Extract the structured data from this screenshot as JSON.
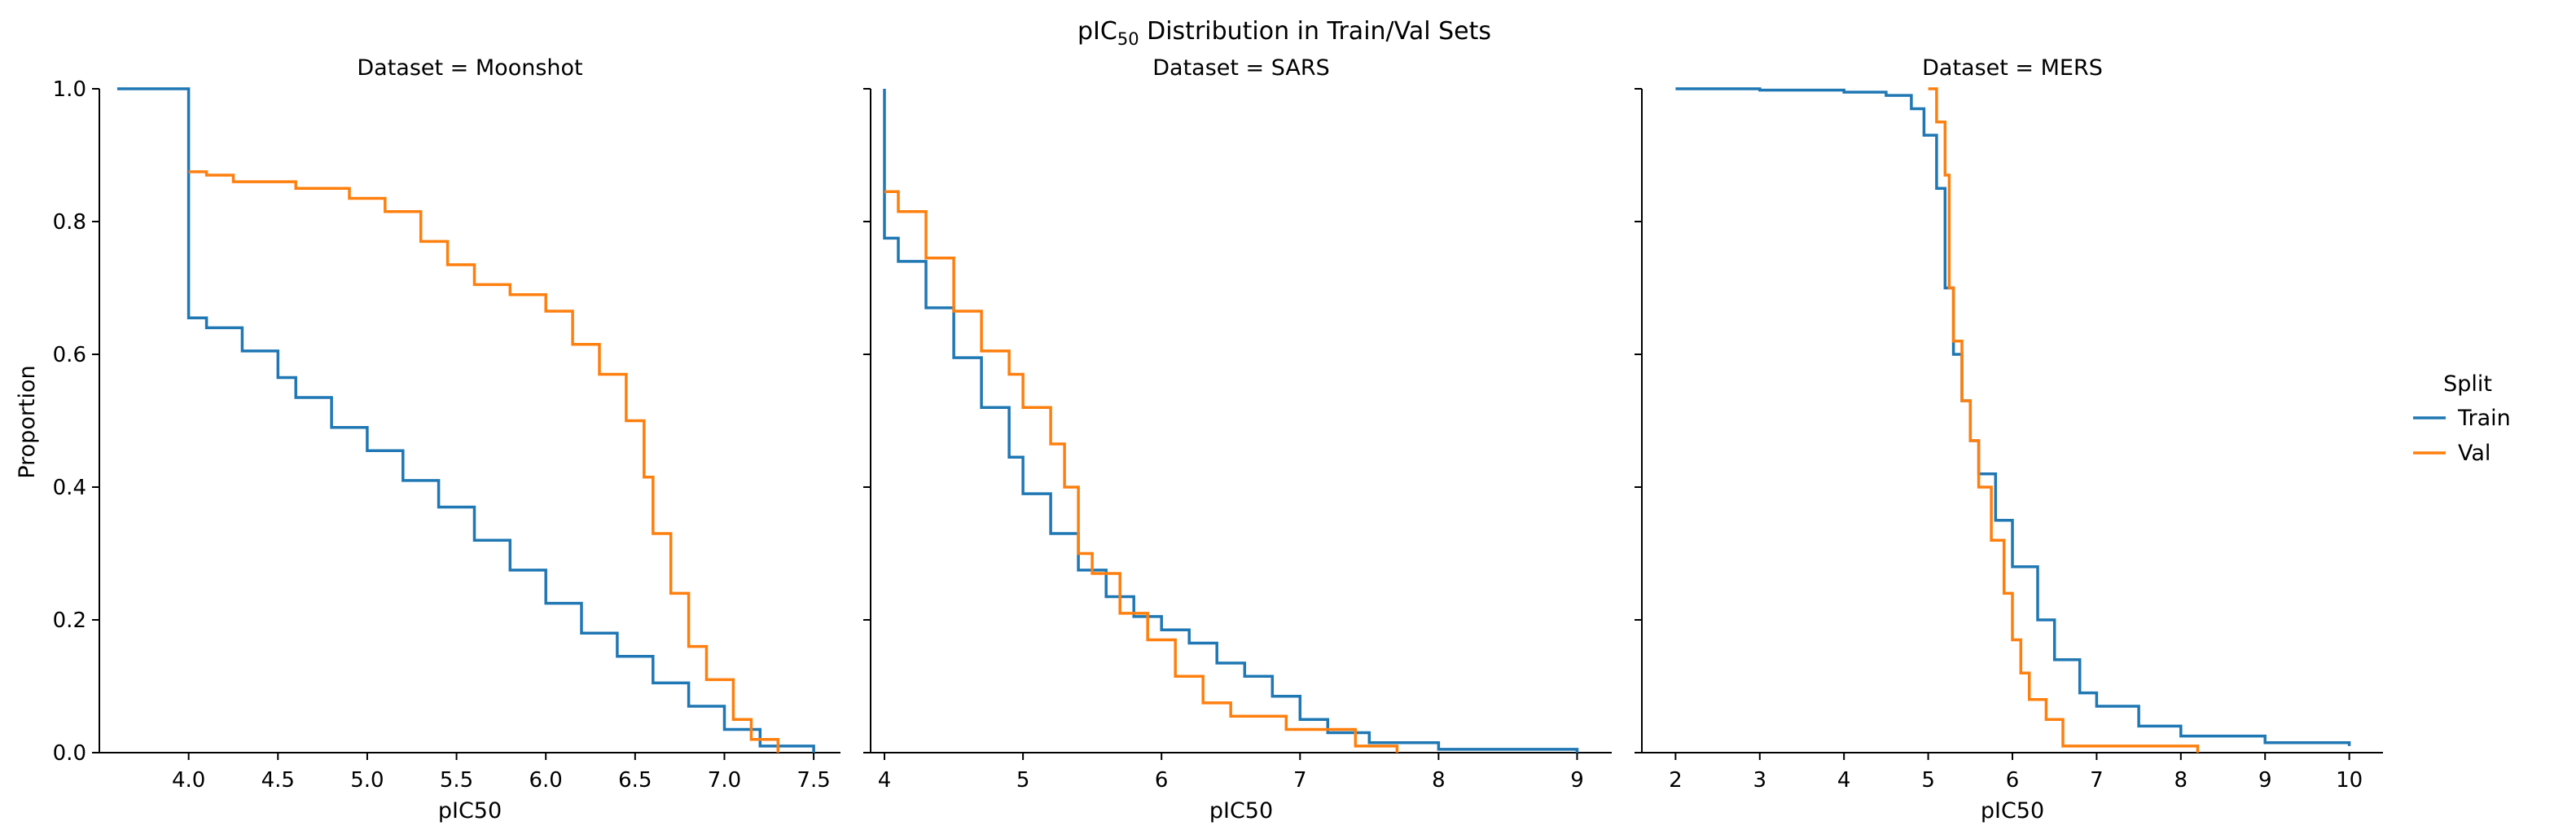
{
  "chart_data": {
    "type": "line",
    "suptitle_text": "pIC",
    "suptitle_sub": "50",
    "suptitle_rest": " Distribution in Train/Val Sets",
    "ylabel": "Proportion",
    "xlabel": "pIC50",
    "legend": {
      "title": "Split",
      "position": "right",
      "entries": [
        {
          "name": "Train",
          "color": "#1f77b4"
        },
        {
          "name": "Val",
          "color": "#ff7f0e"
        }
      ]
    },
    "ylim": [
      0,
      1
    ],
    "yticks": [
      0.0,
      0.2,
      0.4,
      0.6,
      0.8,
      1.0
    ],
    "ytick_labels": [
      "0.0",
      "0.2",
      "0.4",
      "0.6",
      "0.8",
      "1.0"
    ],
    "grid": false,
    "panels": [
      {
        "title": "Dataset = Moonshot",
        "xlim": [
          3.5,
          7.65
        ],
        "xticks": [
          4.0,
          4.5,
          5.0,
          5.5,
          6.0,
          6.5,
          7.0,
          7.5
        ],
        "xtick_labels": [
          "4.0",
          "4.5",
          "5.0",
          "5.5",
          "6.0",
          "6.5",
          "7.0",
          "7.5"
        ],
        "series": [
          {
            "name": "Train",
            "points": [
              [
                3.6,
                1.0
              ],
              [
                4.0,
                1.0
              ],
              [
                4.0,
                0.655
              ],
              [
                4.1,
                0.64
              ],
              [
                4.3,
                0.605
              ],
              [
                4.5,
                0.565
              ],
              [
                4.6,
                0.535
              ],
              [
                4.8,
                0.49
              ],
              [
                5.0,
                0.455
              ],
              [
                5.2,
                0.41
              ],
              [
                5.4,
                0.37
              ],
              [
                5.6,
                0.32
              ],
              [
                5.8,
                0.275
              ],
              [
                6.0,
                0.225
              ],
              [
                6.2,
                0.18
              ],
              [
                6.4,
                0.145
              ],
              [
                6.6,
                0.105
              ],
              [
                6.8,
                0.07
              ],
              [
                7.0,
                0.035
              ],
              [
                7.2,
                0.01
              ],
              [
                7.5,
                0.0
              ]
            ]
          },
          {
            "name": "Val",
            "points": [
              [
                4.0,
                0.875
              ],
              [
                4.1,
                0.87
              ],
              [
                4.25,
                0.86
              ],
              [
                4.6,
                0.85
              ],
              [
                4.9,
                0.835
              ],
              [
                5.1,
                0.815
              ],
              [
                5.3,
                0.77
              ],
              [
                5.45,
                0.735
              ],
              [
                5.6,
                0.705
              ],
              [
                5.8,
                0.69
              ],
              [
                6.0,
                0.665
              ],
              [
                6.15,
                0.615
              ],
              [
                6.3,
                0.57
              ],
              [
                6.45,
                0.5
              ],
              [
                6.55,
                0.415
              ],
              [
                6.6,
                0.33
              ],
              [
                6.7,
                0.24
              ],
              [
                6.8,
                0.16
              ],
              [
                6.9,
                0.11
              ],
              [
                7.05,
                0.05
              ],
              [
                7.15,
                0.02
              ],
              [
                7.3,
                0.0
              ]
            ]
          }
        ]
      },
      {
        "title": "Dataset = SARS",
        "xlim": [
          3.9,
          9.25
        ],
        "xticks": [
          4,
          5,
          6,
          7,
          8,
          9
        ],
        "xtick_labels": [
          "4",
          "5",
          "6",
          "7",
          "8",
          "9"
        ],
        "series": [
          {
            "name": "Train",
            "points": [
              [
                4.0,
                1.0
              ],
              [
                4.0,
                0.775
              ],
              [
                4.1,
                0.74
              ],
              [
                4.3,
                0.67
              ],
              [
                4.5,
                0.595
              ],
              [
                4.7,
                0.52
              ],
              [
                4.9,
                0.445
              ],
              [
                5.0,
                0.39
              ],
              [
                5.2,
                0.33
              ],
              [
                5.4,
                0.275
              ],
              [
                5.6,
                0.235
              ],
              [
                5.8,
                0.205
              ],
              [
                6.0,
                0.185
              ],
              [
                6.2,
                0.165
              ],
              [
                6.4,
                0.135
              ],
              [
                6.6,
                0.115
              ],
              [
                6.8,
                0.085
              ],
              [
                7.0,
                0.05
              ],
              [
                7.2,
                0.03
              ],
              [
                7.5,
                0.015
              ],
              [
                8.0,
                0.005
              ],
              [
                9.0,
                0.0
              ]
            ]
          },
          {
            "name": "Val",
            "points": [
              [
                4.0,
                0.845
              ],
              [
                4.1,
                0.815
              ],
              [
                4.3,
                0.745
              ],
              [
                4.5,
                0.665
              ],
              [
                4.7,
                0.605
              ],
              [
                4.9,
                0.57
              ],
              [
                5.0,
                0.52
              ],
              [
                5.2,
                0.465
              ],
              [
                5.3,
                0.4
              ],
              [
                5.4,
                0.3
              ],
              [
                5.5,
                0.27
              ],
              [
                5.7,
                0.21
              ],
              [
                5.9,
                0.17
              ],
              [
                6.1,
                0.115
              ],
              [
                6.3,
                0.075
              ],
              [
                6.5,
                0.055
              ],
              [
                6.9,
                0.035
              ],
              [
                7.4,
                0.01
              ],
              [
                7.7,
                0.0
              ]
            ]
          }
        ]
      },
      {
        "title": "Dataset = MERS",
        "xlim": [
          1.6,
          10.4
        ],
        "xticks": [
          2,
          3,
          4,
          5,
          6,
          7,
          8,
          9,
          10
        ],
        "xtick_labels": [
          "2",
          "3",
          "4",
          "5",
          "6",
          "7",
          "8",
          "9",
          "10"
        ],
        "series": [
          {
            "name": "Train",
            "points": [
              [
                2.0,
                1.0
              ],
              [
                3.0,
                0.998
              ],
              [
                4.0,
                0.995
              ],
              [
                4.5,
                0.99
              ],
              [
                4.8,
                0.97
              ],
              [
                4.95,
                0.93
              ],
              [
                5.1,
                0.85
              ],
              [
                5.2,
                0.7
              ],
              [
                5.3,
                0.6
              ],
              [
                5.4,
                0.53
              ],
              [
                5.5,
                0.47
              ],
              [
                5.6,
                0.42
              ],
              [
                5.8,
                0.35
              ],
              [
                6.0,
                0.28
              ],
              [
                6.3,
                0.2
              ],
              [
                6.5,
                0.14
              ],
              [
                6.8,
                0.09
              ],
              [
                7.0,
                0.07
              ],
              [
                7.5,
                0.04
              ],
              [
                8.0,
                0.025
              ],
              [
                9.0,
                0.015
              ],
              [
                10.0,
                0.01
              ]
            ]
          },
          {
            "name": "Val",
            "points": [
              [
                5.0,
                1.0
              ],
              [
                5.1,
                0.95
              ],
              [
                5.2,
                0.87
              ],
              [
                5.25,
                0.7
              ],
              [
                5.3,
                0.62
              ],
              [
                5.4,
                0.53
              ],
              [
                5.5,
                0.47
              ],
              [
                5.6,
                0.4
              ],
              [
                5.75,
                0.32
              ],
              [
                5.9,
                0.24
              ],
              [
                6.0,
                0.17
              ],
              [
                6.1,
                0.12
              ],
              [
                6.2,
                0.08
              ],
              [
                6.4,
                0.05
              ],
              [
                6.6,
                0.01
              ],
              [
                8.2,
                0.0
              ]
            ]
          }
        ]
      }
    ]
  }
}
